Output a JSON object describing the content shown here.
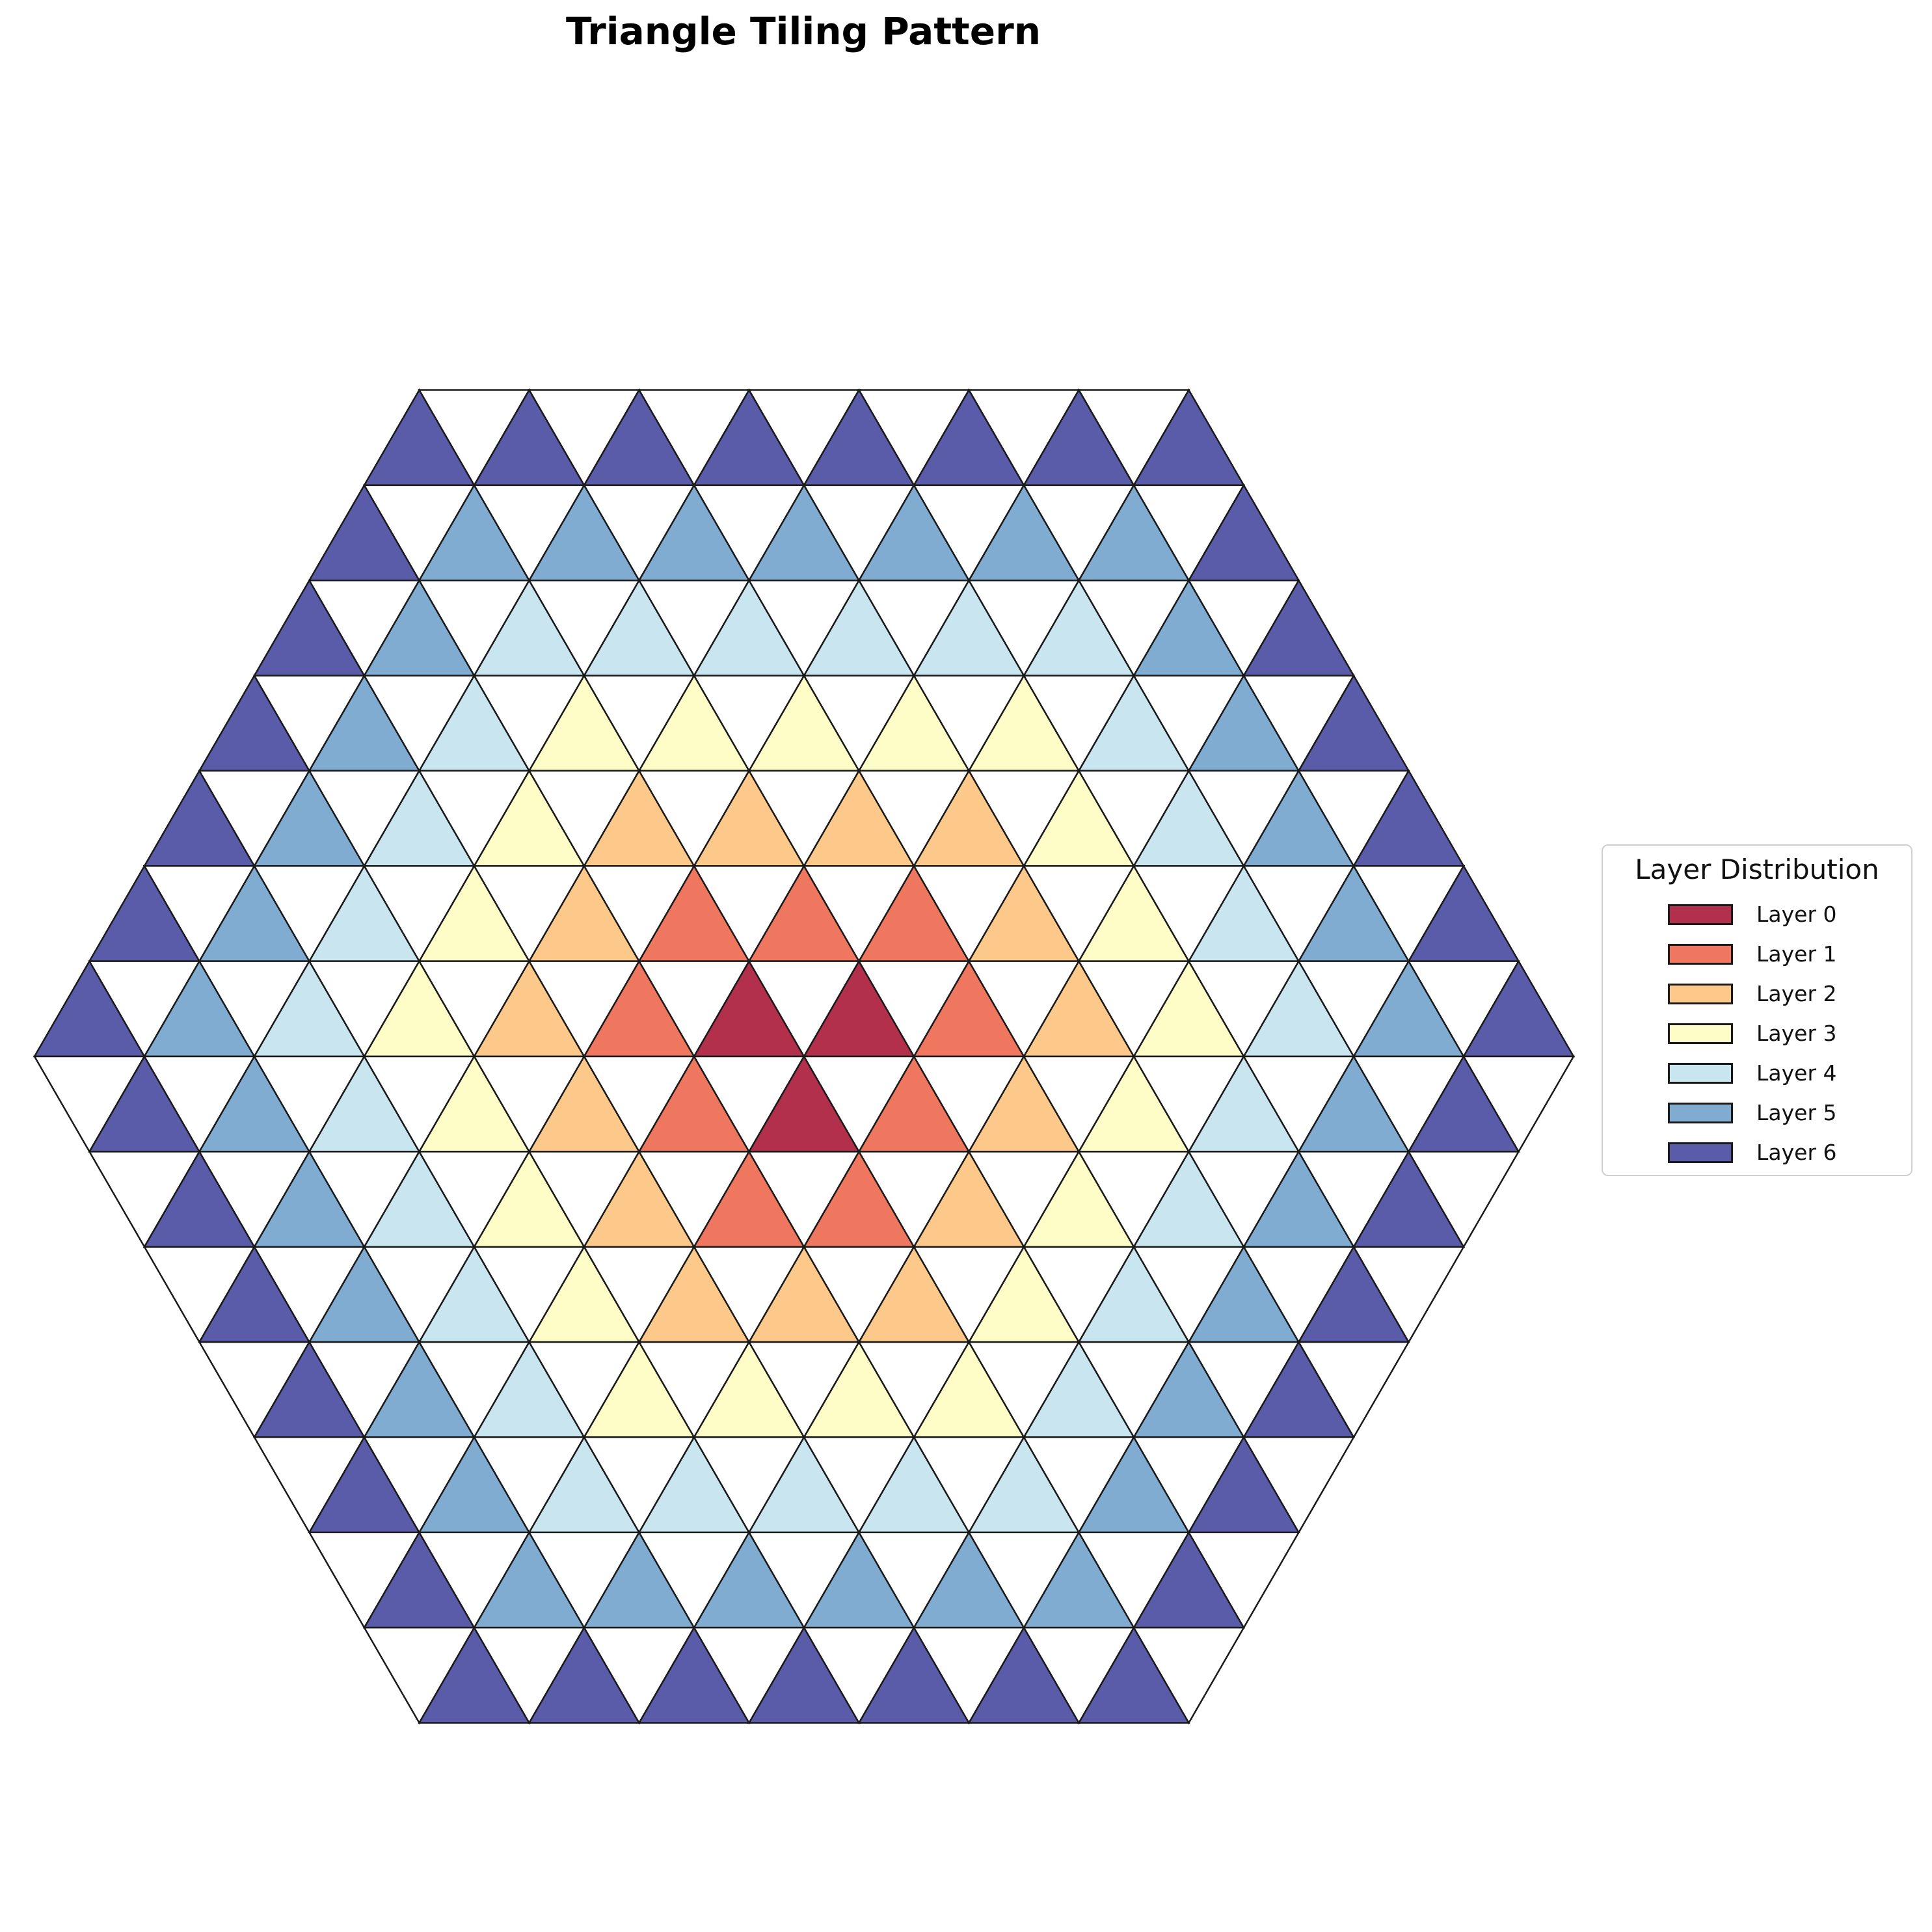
{
  "title": "Triangle Tiling Pattern",
  "legend": {
    "title": "Layer Distribution",
    "items": [
      {
        "label": "Layer 0",
        "color": "#b3304c"
      },
      {
        "label": "Layer 1",
        "color": "#ef765f"
      },
      {
        "label": "Layer 2",
        "color": "#fcc98b"
      },
      {
        "label": "Layer 3",
        "color": "#fefdc8"
      },
      {
        "label": "Layer 4",
        "color": "#c9e5ef"
      },
      {
        "label": "Layer 5",
        "color": "#80acd2"
      },
      {
        "label": "Layer 6",
        "color": "#5a5ba9"
      }
    ]
  },
  "diagram": {
    "rings": 7,
    "outline_color": "#1a1a1a"
  }
}
